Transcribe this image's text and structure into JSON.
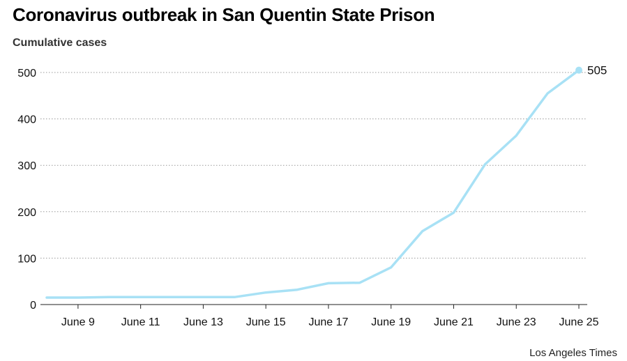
{
  "chart_data": {
    "type": "line",
    "title": "Coronavirus outbreak in San Quentin State Prison",
    "subtitle": "Cumulative cases",
    "x": [
      "June 8",
      "June 9",
      "June 10",
      "June 11",
      "June 12",
      "June 13",
      "June 14",
      "June 15",
      "June 16",
      "June 17",
      "June 18",
      "June 19",
      "June 20",
      "June 21",
      "June 22",
      "June 23",
      "June 24",
      "June 25"
    ],
    "series": [
      {
        "values": [
          15,
          15,
          16,
          16,
          16,
          16,
          16,
          26,
          32,
          46,
          47,
          80,
          158,
          198,
          302,
          364,
          455,
          505
        ]
      }
    ],
    "x_tick_labels": [
      "June 9",
      "June 11",
      "June 13",
      "June 15",
      "June 17",
      "June 19",
      "June 21",
      "June 23",
      "June 25"
    ],
    "y_ticks": [
      0,
      100,
      200,
      300,
      400,
      500
    ],
    "ylim": [
      0,
      520
    ],
    "end_label": "505",
    "grid": true,
    "line_color": "#a8e1f5",
    "grid_color": "#999999"
  },
  "source_credit": "Los Angeles Times"
}
